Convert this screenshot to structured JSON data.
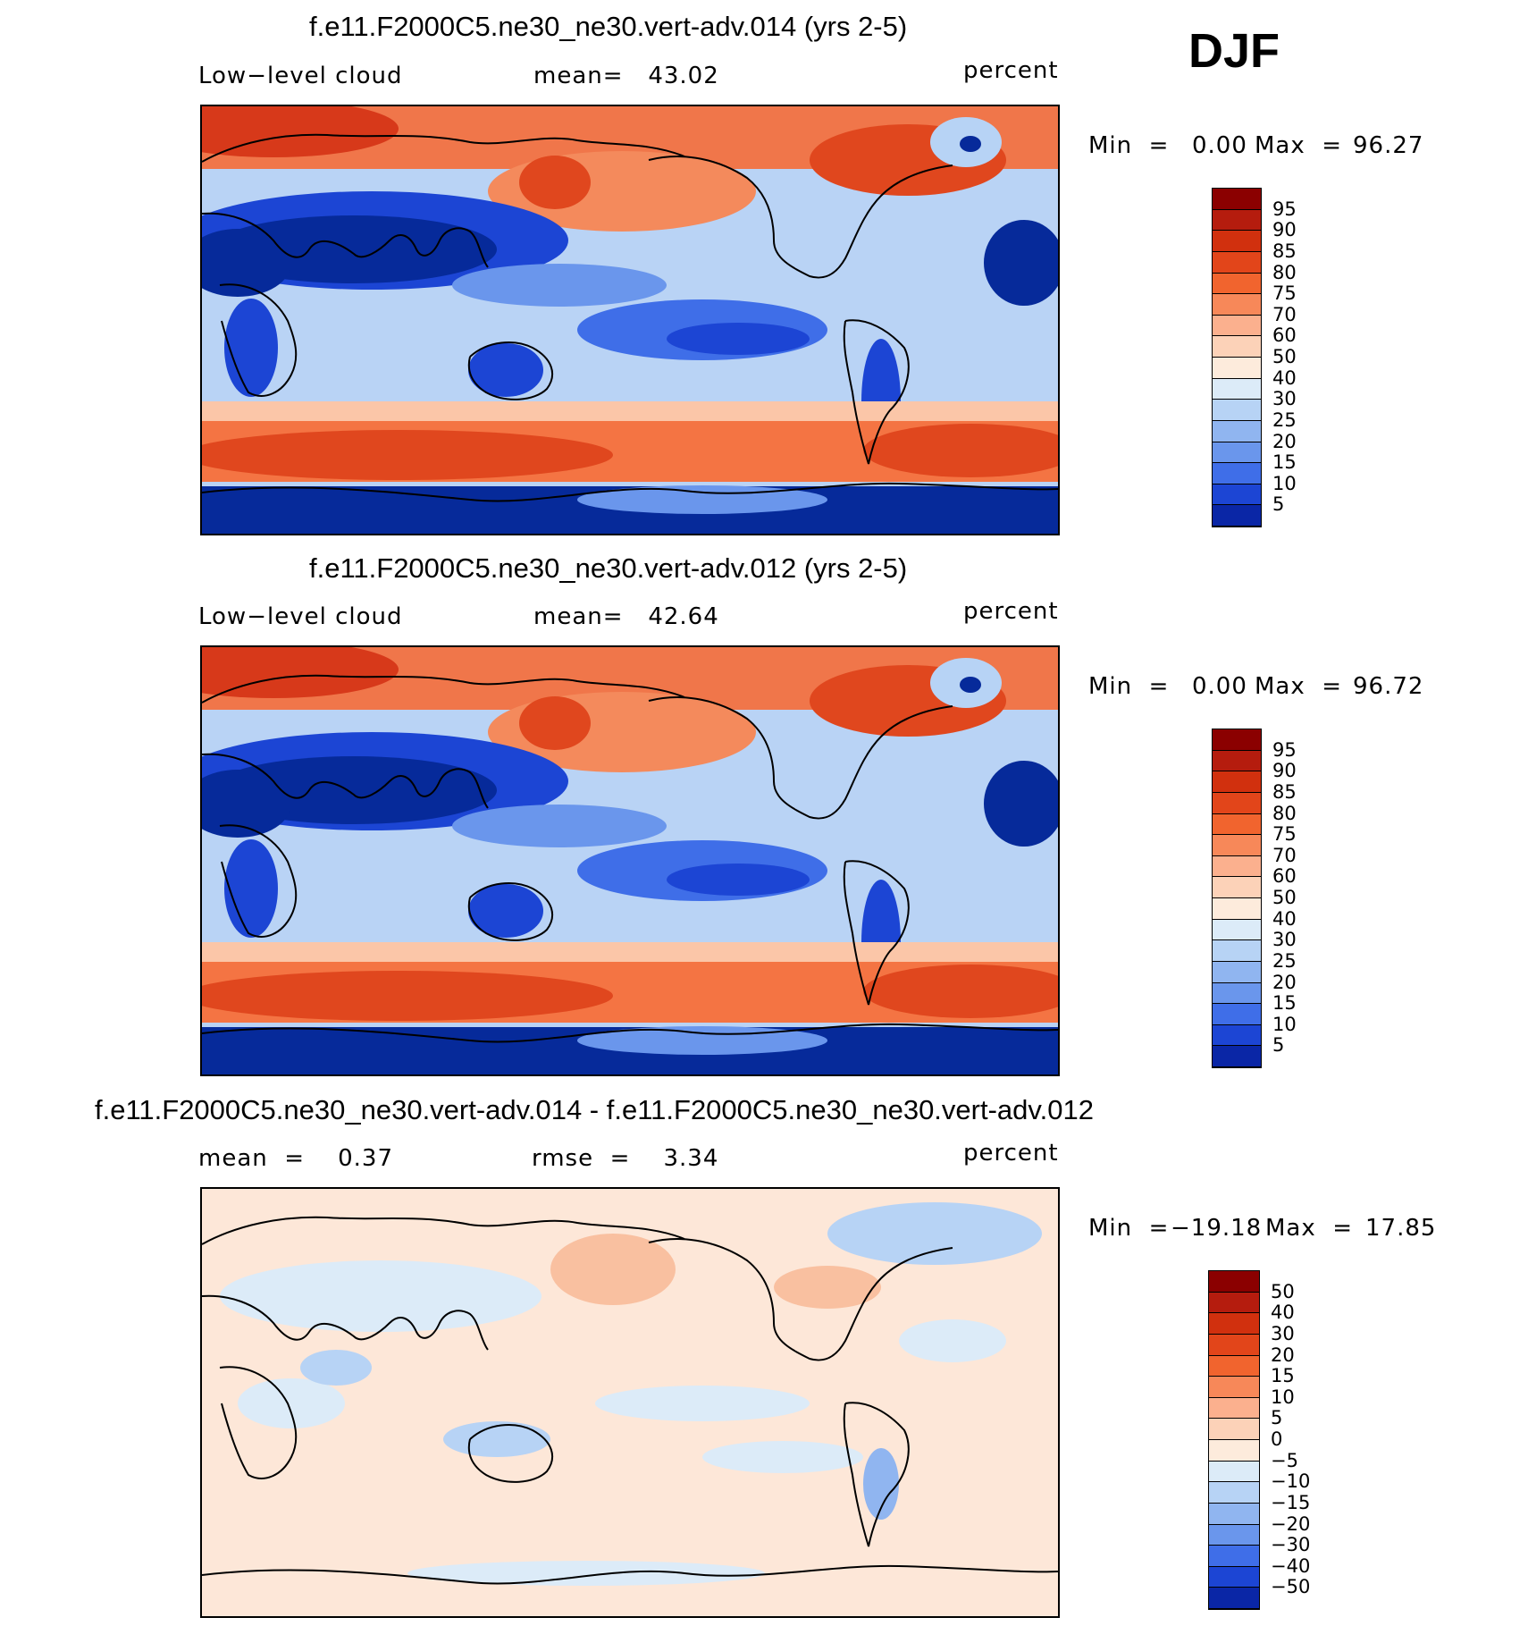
{
  "season": "DJF",
  "panels": [
    {
      "title": "f.e11.F2000C5.ne30_ne30.vert-adv.014 (yrs 2-5)",
      "left_label": "Low−level cloud",
      "mid_label": "mean=   43.02",
      "right_label": "percent",
      "min_label": "Min  =",
      "min_value": "0.00",
      "max_label": "Max  =",
      "max_value": "96.27",
      "colorbar": {
        "labels": [
          "95",
          "90",
          "85",
          "80",
          "75",
          "70",
          "60",
          "50",
          "40",
          "30",
          "25",
          "20",
          "15",
          "10",
          "5"
        ],
        "colors": [
          "#8b0000",
          "#b51c0e",
          "#d1300e",
          "#e2451a",
          "#f1642e",
          "#f78859",
          "#fbb08e",
          "#fcd2b8",
          "#fdebdc",
          "#dcebf8",
          "#b7d3f5",
          "#90b5f0",
          "#6a96ec",
          "#3f6ee8",
          "#1c45d4",
          "#0a26a6"
        ]
      },
      "chart_data": {
        "type": "heatmap",
        "variable": "Low-level cloud",
        "units": "percent",
        "mean": 43.02,
        "min": 0.0,
        "max": 96.27,
        "levels": [
          5,
          10,
          15,
          20,
          25,
          30,
          40,
          50,
          60,
          70,
          75,
          80,
          85,
          90,
          95
        ]
      }
    },
    {
      "title": "f.e11.F2000C5.ne30_ne30.vert-adv.012 (yrs 2-5)",
      "left_label": "Low−level cloud",
      "mid_label": "mean=   42.64",
      "right_label": "percent",
      "min_label": "Min  =",
      "min_value": "0.00",
      "max_label": "Max  =",
      "max_value": "96.72",
      "colorbar": {
        "labels": [
          "95",
          "90",
          "85",
          "80",
          "75",
          "70",
          "60",
          "50",
          "40",
          "30",
          "25",
          "20",
          "15",
          "10",
          "5"
        ],
        "colors": [
          "#8b0000",
          "#b51c0e",
          "#d1300e",
          "#e2451a",
          "#f1642e",
          "#f78859",
          "#fbb08e",
          "#fcd2b8",
          "#fdebdc",
          "#dcebf8",
          "#b7d3f5",
          "#90b5f0",
          "#6a96ec",
          "#3f6ee8",
          "#1c45d4",
          "#0a26a6"
        ]
      },
      "chart_data": {
        "type": "heatmap",
        "variable": "Low-level cloud",
        "units": "percent",
        "mean": 42.64,
        "min": 0.0,
        "max": 96.72,
        "levels": [
          5,
          10,
          15,
          20,
          25,
          30,
          40,
          50,
          60,
          70,
          75,
          80,
          85,
          90,
          95
        ]
      }
    },
    {
      "title": "f.e11.F2000C5.ne30_ne30.vert-adv.014 - f.e11.F2000C5.ne30_ne30.vert-adv.012",
      "left_label": "mean  =    0.37",
      "mid_label": "rmse  =    3.34",
      "right_label": "percent",
      "min_label": "Min  =",
      "min_value": "−19.18",
      "max_label": "Max  =",
      "max_value": "17.85",
      "colorbar": {
        "labels": [
          "50",
          "40",
          "30",
          "20",
          "15",
          "10",
          "5",
          "0",
          "−5",
          "−10",
          "−15",
          "−20",
          "−30",
          "−40",
          "−50"
        ],
        "colors": [
          "#8b0000",
          "#b51c0e",
          "#d1300e",
          "#e2451a",
          "#f1642e",
          "#f78859",
          "#fbb08e",
          "#fcd2b8",
          "#fdebdc",
          "#dcebf8",
          "#b7d3f5",
          "#90b5f0",
          "#6a96ec",
          "#3f6ee8",
          "#1c45d4",
          "#0a26a6"
        ]
      },
      "chart_data": {
        "type": "heatmap",
        "variable": "Low-level cloud difference",
        "units": "percent",
        "mean": 0.37,
        "rmse": 3.34,
        "min": -19.18,
        "max": 17.85,
        "levels": [
          -50,
          -40,
          -30,
          -20,
          -15,
          -10,
          -5,
          0,
          5,
          10,
          15,
          20,
          30,
          40,
          50
        ]
      }
    }
  ]
}
